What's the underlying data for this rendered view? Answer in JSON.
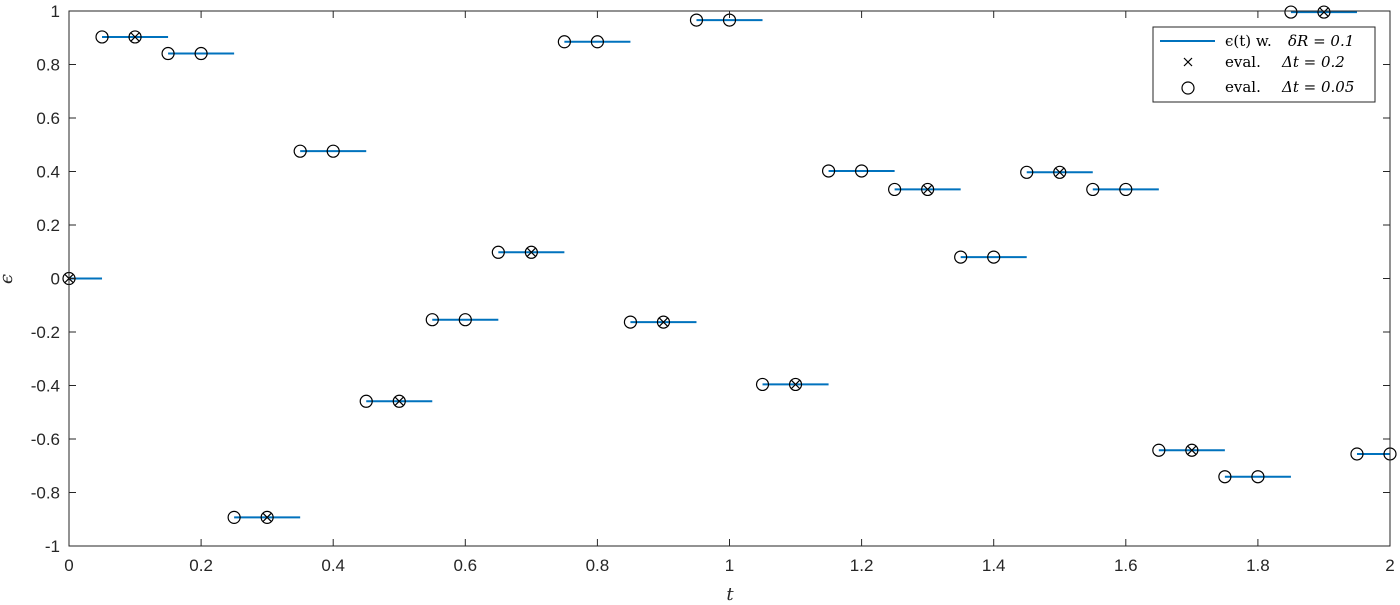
{
  "chart_data": {
    "type": "line",
    "xlabel": "t",
    "ylabel": "ϵ",
    "xlim": [
      0,
      2
    ],
    "ylim": [
      -1,
      1
    ],
    "grid": false,
    "x_ticks": [
      "0",
      "0.2",
      "0.4",
      "0.6",
      "0.8",
      "1",
      "1.2",
      "1.4",
      "1.6",
      "1.8",
      "2"
    ],
    "y_ticks": [
      "1",
      "0.8",
      "0.6",
      "0.4",
      "0.2",
      "0",
      "-0.2",
      "-0.4",
      "-0.6",
      "-0.8",
      "-1"
    ],
    "legend_position": "top-right",
    "series": [
      {
        "name": "ϵ(t) w. δR = 0.1",
        "kind": "step",
        "color": "#0072BD",
        "segments": [
          {
            "x": [
              0,
              0.05
            ],
            "y": 0
          },
          {
            "x": [
              0.05,
              0.15
            ],
            "y": 0.903
          },
          {
            "x": [
              0.15,
              0.25
            ],
            "y": 0.841
          },
          {
            "x": [
              0.25,
              0.35
            ],
            "y": -0.893
          },
          {
            "x": [
              0.35,
              0.45
            ],
            "y": 0.476
          },
          {
            "x": [
              0.45,
              0.55
            ],
            "y": -0.459
          },
          {
            "x": [
              0.55,
              0.65
            ],
            "y": -0.154
          },
          {
            "x": [
              0.65,
              0.75
            ],
            "y": 0.098
          },
          {
            "x": [
              0.75,
              0.85
            ],
            "y": 0.885
          },
          {
            "x": [
              0.85,
              0.95
            ],
            "y": -0.163
          },
          {
            "x": [
              0.95,
              1.05
            ],
            "y": 0.966
          },
          {
            "x": [
              1.05,
              1.15
            ],
            "y": -0.396
          },
          {
            "x": [
              1.15,
              1.25
            ],
            "y": 0.402
          },
          {
            "x": [
              1.25,
              1.35
            ],
            "y": 0.333
          },
          {
            "x": [
              1.35,
              1.45
            ],
            "y": 0.08
          },
          {
            "x": [
              1.45,
              1.55
            ],
            "y": 0.397
          },
          {
            "x": [
              1.55,
              1.65
            ],
            "y": 0.333
          },
          {
            "x": [
              1.65,
              1.75
            ],
            "y": -0.642
          },
          {
            "x": [
              1.75,
              1.85
            ],
            "y": -0.741
          },
          {
            "x": [
              1.85,
              1.95
            ],
            "y": 0.996
          },
          {
            "x": [
              1.95,
              2.0
            ],
            "y": -0.656
          }
        ]
      },
      {
        "name": "eval.    Δt = 0.2",
        "kind": "markers",
        "marker": "x",
        "color": "#000000",
        "x": [
          0,
          0.1,
          0.3,
          0.5,
          0.7,
          0.9,
          1.1,
          1.3,
          1.5,
          1.7,
          1.9
        ],
        "y": [
          0,
          0.903,
          -0.893,
          -0.459,
          0.098,
          -0.163,
          -0.396,
          0.333,
          0.397,
          -0.642,
          0.996
        ]
      },
      {
        "name": "eval.    Δt = 0.05",
        "kind": "markers",
        "marker": "o",
        "color": "#000000",
        "x": [
          0,
          0.05,
          0.1,
          0.15,
          0.2,
          0.25,
          0.3,
          0.35,
          0.4,
          0.45,
          0.5,
          0.55,
          0.6,
          0.65,
          0.7,
          0.75,
          0.8,
          0.85,
          0.9,
          0.95,
          1.0,
          1.05,
          1.1,
          1.15,
          1.2,
          1.25,
          1.3,
          1.35,
          1.4,
          1.45,
          1.5,
          1.55,
          1.6,
          1.65,
          1.7,
          1.75,
          1.8,
          1.85,
          1.9,
          1.95,
          2.0
        ],
        "y": [
          0,
          0.903,
          0.903,
          0.841,
          0.841,
          -0.893,
          -0.893,
          0.476,
          0.476,
          -0.459,
          -0.459,
          -0.154,
          -0.154,
          0.098,
          0.098,
          0.885,
          0.885,
          -0.163,
          -0.163,
          0.966,
          0.966,
          -0.396,
          -0.396,
          0.402,
          0.402,
          0.333,
          0.333,
          0.08,
          0.08,
          0.397,
          0.397,
          0.333,
          0.333,
          -0.642,
          -0.642,
          -0.741,
          -0.741,
          0.996,
          0.996,
          -0.656,
          -0.656
        ]
      }
    ]
  },
  "legend": {
    "items": [
      {
        "text": "ϵ(t) w.",
        "math": "δR = 0.1"
      },
      {
        "text": "eval.",
        "math": "Δt = 0.2"
      },
      {
        "text": "eval.",
        "math": "Δt = 0.05"
      }
    ]
  }
}
